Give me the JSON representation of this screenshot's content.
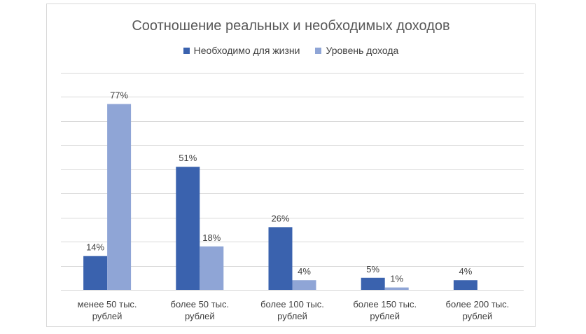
{
  "chart_data": {
    "type": "bar",
    "title": "Соотношение реальных и необходимых доходов",
    "categories": [
      [
        "менее 50 тыс.",
        "рублей"
      ],
      [
        "более 50 тыс.",
        "рублей"
      ],
      [
        "более 100 тыс.",
        "рублей"
      ],
      [
        "более 150 тыс.",
        "рублей"
      ],
      [
        "более 200 тыс.",
        "рублей"
      ]
    ],
    "series": [
      {
        "name": "Необходимо для жизни",
        "values": [
          14,
          51,
          26,
          5,
          4
        ],
        "labels": [
          "14%",
          "51%",
          "26%",
          "5%",
          "4%"
        ],
        "color": "#3a62ae"
      },
      {
        "name": "Уровень дохода",
        "values": [
          77,
          18,
          4,
          1,
          0
        ],
        "labels": [
          "77%",
          "18%",
          "4%",
          "1%",
          ""
        ],
        "color": "#8fa5d6"
      }
    ],
    "ylim": [
      0,
      90
    ],
    "y_gridline_step": 10,
    "grid": true,
    "legend_position": "top"
  }
}
